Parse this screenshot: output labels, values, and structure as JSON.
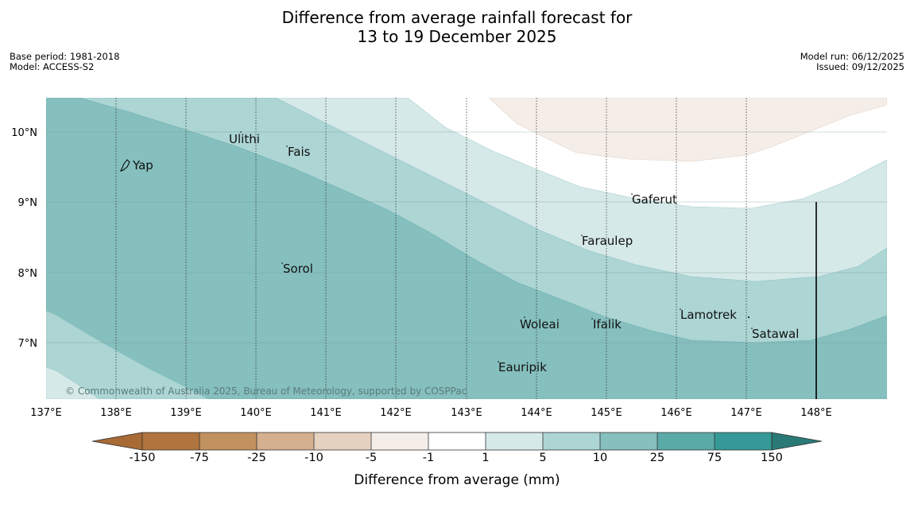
{
  "title": {
    "line1": "Difference from average rainfall forecast for",
    "line2": "13 to 19 December 2025"
  },
  "meta_left": {
    "base_period": "Base period: 1981-2018",
    "model": "Model: ACCESS-S2"
  },
  "meta_right": {
    "model_run": "Model run: 06/12/2025",
    "issued": "Issued: 09/12/2025"
  },
  "map": {
    "lon_ticks": [
      "137°E",
      "138°E",
      "139°E",
      "140°E",
      "141°E",
      "142°E",
      "143°E",
      "144°E",
      "145°E",
      "146°E",
      "147°E",
      "148°E"
    ],
    "lat_ticks": [
      "10°N",
      "9°N",
      "8°N",
      "7°N"
    ],
    "places": [
      "Yap",
      "Ulithi",
      "Fais",
      "Gaferut",
      "Faraulep",
      "Sorol",
      "Lamotrek",
      "Woleai",
      "Ifalik",
      "Satawal",
      "Eauripik"
    ],
    "copyright": "© Commonwealth of Australia 2025, Bureau of Meteorology, supported by COSPPac"
  },
  "colorbar": {
    "labels": [
      "-150",
      "-75",
      "-25",
      "-10",
      "-5",
      "-1",
      "1",
      "5",
      "10",
      "25",
      "75",
      "150"
    ],
    "colors": [
      "#a86b35",
      "#b0743e",
      "#c1915f",
      "#d4b08e",
      "#e5d2c1",
      "#f5eee8",
      "#ffffff",
      "#d5e9e8",
      "#acd5d4",
      "#85bfbe",
      "#5aaaa8",
      "#359a97",
      "#2a7a78"
    ],
    "title": "Difference from average (mm)"
  }
}
